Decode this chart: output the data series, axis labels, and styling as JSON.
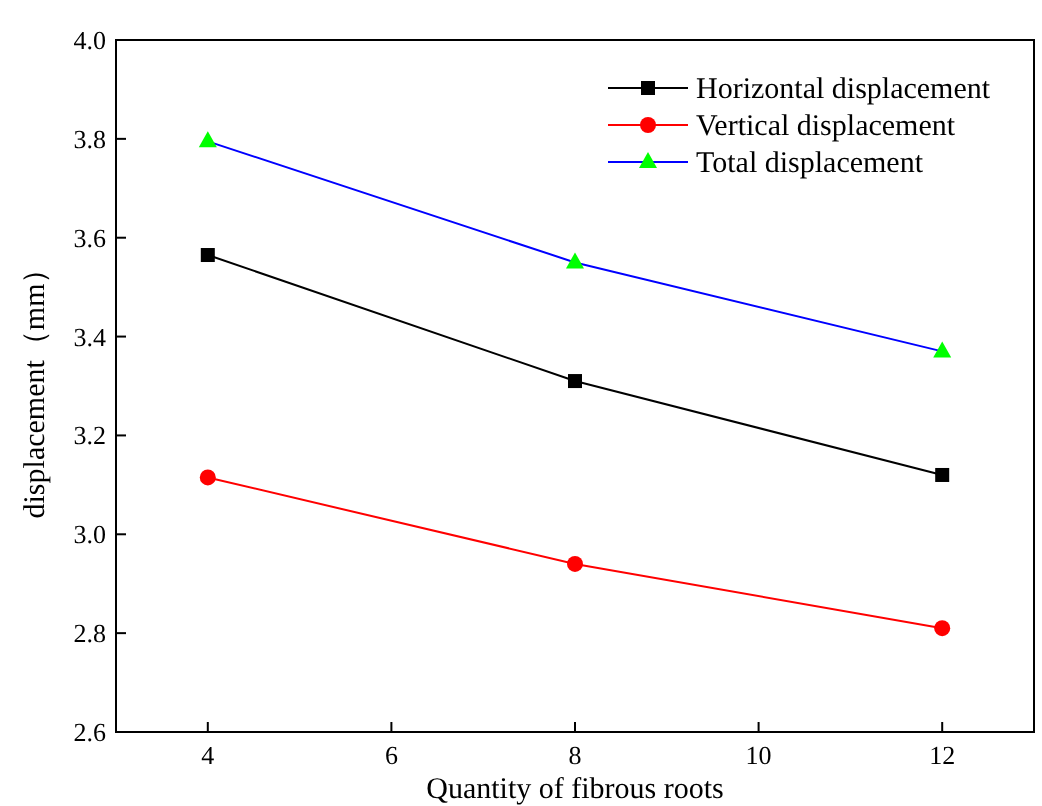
{
  "chart_data": {
    "type": "line",
    "xlabel": "Quantity of fibrous roots",
    "ylabel": "displacement（mm）",
    "x": [
      4,
      8,
      12
    ],
    "series": [
      {
        "name": "Horizontal displacement",
        "color": "#000000",
        "marker": "square",
        "values": [
          3.565,
          3.31,
          3.12
        ]
      },
      {
        "name": "Vertical displacement",
        "color": "#ff0000",
        "marker": "circle",
        "values": [
          3.115,
          2.94,
          2.81
        ]
      },
      {
        "name": "Total displacement",
        "color": "#0000ff",
        "colors": [
          "#00ff00",
          "#00ff00",
          "#00ff00"
        ],
        "marker": "triangle",
        "values": [
          3.795,
          3.55,
          3.37
        ]
      }
    ],
    "xlim": [
      3,
      13
    ],
    "xticks": [
      4,
      6,
      8,
      10,
      12
    ],
    "ylim": [
      2.6,
      4.0
    ],
    "yticks": [
      2.6,
      2.8,
      {
        "value": 3.0,
        "label": "3.0"
      },
      3.2,
      3.4,
      3.6,
      3.8,
      {
        "value": 4.0,
        "label": "4.0"
      }
    ],
    "grid": false,
    "legend": "top right",
    "line_style": "solid"
  }
}
